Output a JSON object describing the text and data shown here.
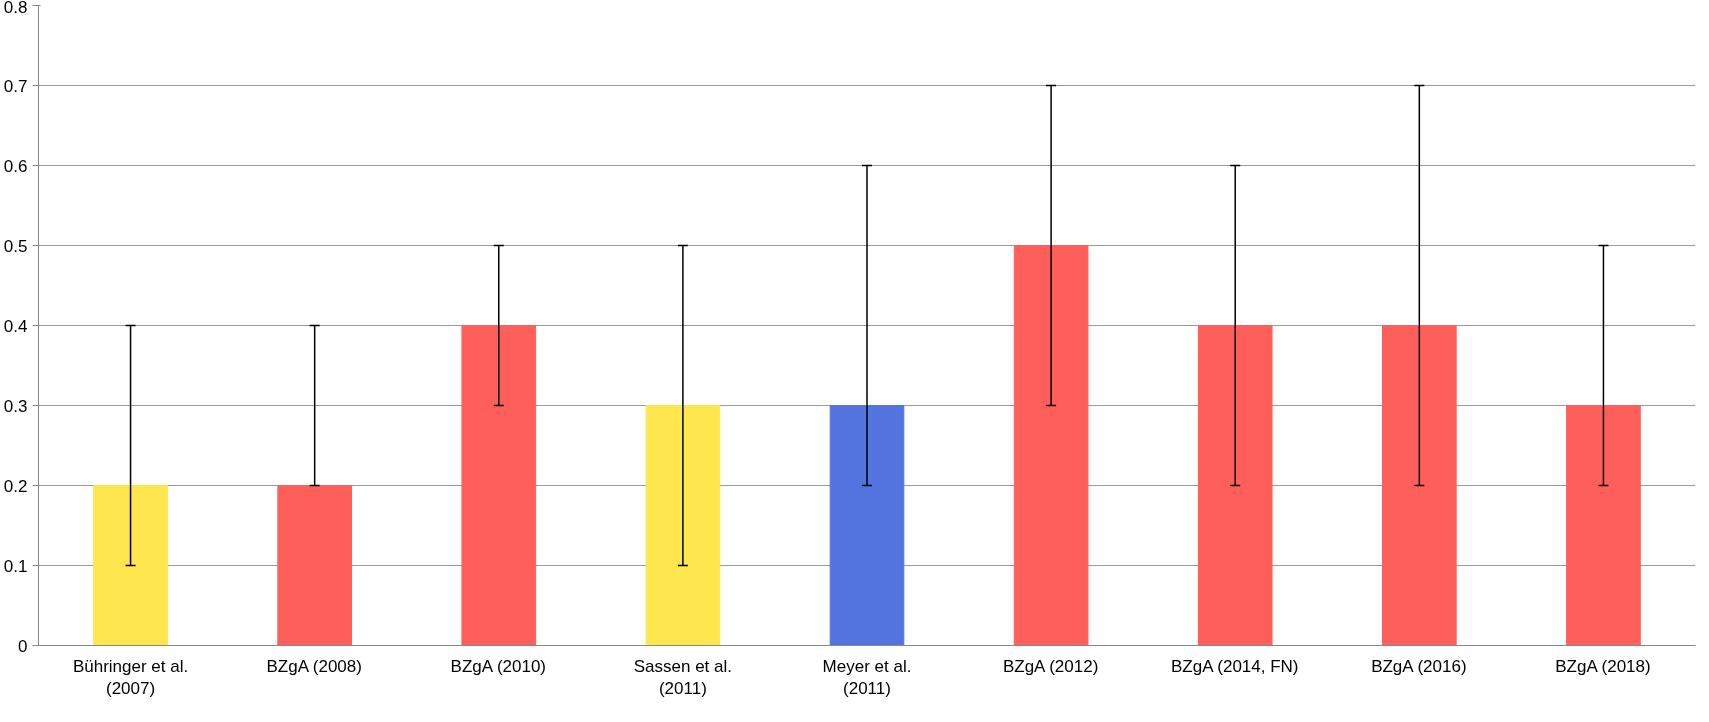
{
  "chart_data": {
    "type": "bar",
    "categories": [
      "Bühringer et al.\n(2007)",
      "BZgA (2008)",
      "BZgA (2010)",
      "Sassen et al.\n(2011)",
      "Meyer et al.\n(2011)",
      "BZgA (2012)",
      "BZgA (2014, FN)",
      "BZgA (2016)",
      "BZgA (2018)"
    ],
    "values": [
      0.2,
      0.2,
      0.4,
      0.3,
      0.3,
      0.5,
      0.4,
      0.4,
      0.3
    ],
    "colors": [
      "#fee64e",
      "#ff5f5a",
      "#ff5f5a",
      "#fee64e",
      "#5475e0",
      "#ff5f5a",
      "#ff5f5a",
      "#ff5f5a",
      "#ff5f5a"
    ],
    "errors": [
      [
        0.1,
        0.4
      ],
      [
        0.2,
        0.4
      ],
      [
        0.3,
        0.5
      ],
      [
        0.1,
        0.5
      ],
      [
        0.2,
        0.6
      ],
      [
        0.3,
        0.7
      ],
      [
        0.2,
        0.6
      ],
      [
        0.2,
        0.7
      ],
      [
        0.2,
        0.5
      ]
    ],
    "ylim": [
      0,
      0.8
    ],
    "yticks": [
      0,
      0.1,
      0.2,
      0.3,
      0.4,
      0.5,
      0.6,
      0.7,
      0.8
    ],
    "grid": "y"
  }
}
